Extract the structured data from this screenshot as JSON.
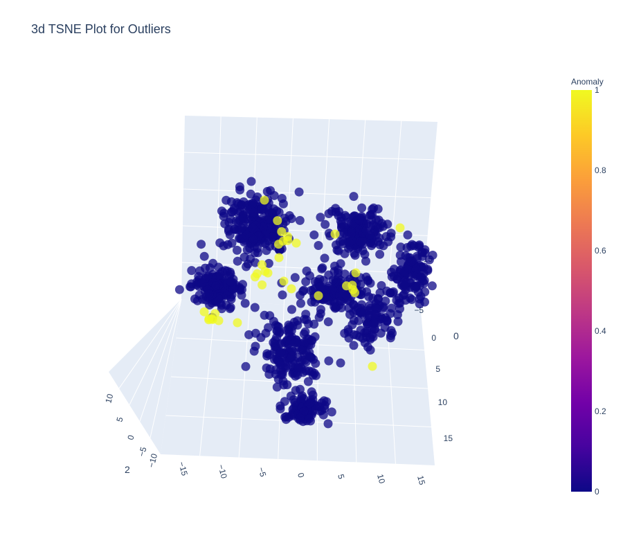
{
  "title": "3d TSNE Plot for Outliers",
  "chart_data": {
    "type": "scatter",
    "projection": "3d",
    "title": "3d TSNE Plot for Outliers",
    "axes": {
      "x": {
        "label": "0",
        "ticks": [
          "−5",
          "0",
          "5",
          "10",
          "15"
        ],
        "range": [
          -10,
          20
        ]
      },
      "y": {
        "label": "",
        "ticks": [
          "−15",
          "−10",
          "−5",
          "0",
          "5",
          "10",
          "15"
        ],
        "range": [
          -17,
          17
        ]
      },
      "z": {
        "label": "2",
        "ticks": [
          "−10",
          "−5",
          "0",
          "5",
          "10"
        ],
        "range": [
          -11,
          12
        ]
      }
    },
    "colorbar": {
      "title": "Anomaly",
      "ticks": [
        "0",
        "0.2",
        "0.4",
        "0.6",
        "0.8",
        "1"
      ],
      "colorscale": [
        "#0d0887",
        "#46039f",
        "#7201a8",
        "#9c179e",
        "#bd3786",
        "#d8576b",
        "#ed7953",
        "#fb9f3a",
        "#fdca26",
        "#f0f921"
      ]
    },
    "series": [
      {
        "value": 0,
        "color": "#0d0887",
        "approx_count": 950
      },
      {
        "value": 1,
        "color": "#f0f921",
        "approx_count": 50
      }
    ],
    "clusters": [
      {
        "anomaly": 0,
        "count": 230,
        "center": [
          370,
          325
        ],
        "spread": [
          38,
          40
        ]
      },
      {
        "anomaly": 0,
        "count": 150,
        "center": [
          315,
          415
        ],
        "spread": [
          32,
          22
        ]
      },
      {
        "anomaly": 0,
        "count": 170,
        "center": [
          420,
          505
        ],
        "spread": [
          38,
          40
        ]
      },
      {
        "anomaly": 0,
        "count": 90,
        "center": [
          440,
          590
        ],
        "spread": [
          28,
          18
        ]
      },
      {
        "anomaly": 0,
        "count": 150,
        "center": [
          515,
          335
        ],
        "spread": [
          35,
          30
        ]
      },
      {
        "anomaly": 0,
        "count": 110,
        "center": [
          595,
          390
        ],
        "spread": [
          22,
          38
        ]
      },
      {
        "anomaly": 0,
        "count": 120,
        "center": [
          480,
          420
        ],
        "spread": [
          40,
          25
        ]
      },
      {
        "anomaly": 0,
        "count": 110,
        "center": [
          540,
          455
        ],
        "spread": [
          35,
          35
        ]
      },
      {
        "anomaly": 1,
        "count": 6,
        "center": [
          410,
          345
        ],
        "spread": [
          12,
          15
        ]
      },
      {
        "anomaly": 1,
        "count": 6,
        "center": [
          375,
          395
        ],
        "spread": [
          10,
          25
        ]
      },
      {
        "anomaly": 1,
        "count": 6,
        "center": [
          305,
          458
        ],
        "spread": [
          15,
          6
        ]
      },
      {
        "anomaly": 1,
        "count": 4,
        "center": [
          512,
          415
        ],
        "spread": [
          8,
          15
        ]
      }
    ],
    "outlier_points": [
      [
        382,
        289
      ],
      [
        578,
        329
      ],
      [
        484,
        338
      ],
      [
        538,
        529
      ],
      [
        343,
        466
      ],
      [
        316,
        463
      ],
      [
        421,
        417
      ],
      [
        410,
        406
      ],
      [
        460,
        427
      ],
      [
        514,
        394
      ],
      [
        403,
        372
      ],
      [
        428,
        351
      ]
    ]
  }
}
